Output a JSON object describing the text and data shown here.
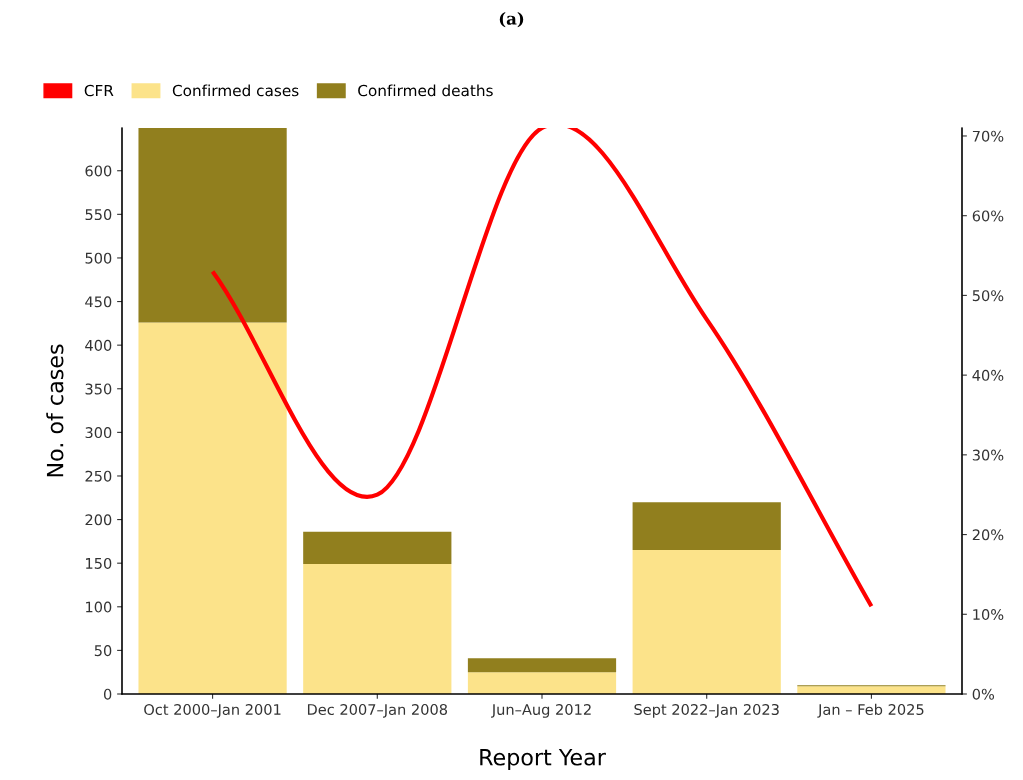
{
  "chart_data": {
    "type": "bar",
    "title": "(a)",
    "xlabel": "Report Year",
    "ylabel": "No. of cases",
    "categories": [
      "Oct 2000–Jan 2001",
      "Dec 2007–Jan 2008",
      "Jun–Aug 2012",
      "Sept 2022–Jan 2023",
      "Jan – Feb 2025"
    ],
    "stacked": true,
    "series": [
      {
        "name": "CFR",
        "type": "line",
        "axis": "y2",
        "color": "#ff0000",
        "values": [
          53,
          25,
          71,
          47,
          11
        ]
      },
      {
        "name": "Confirmed cases",
        "color": "#fce38a",
        "values": [
          426,
          149,
          25,
          165,
          9
        ]
      },
      {
        "name": "Confirmed deaths",
        "color": "#917f1e",
        "values": [
          223,
          37,
          16,
          55,
          1
        ]
      }
    ],
    "ylim": [
      0,
      649
    ],
    "yticks": [
      0,
      50,
      100,
      150,
      200,
      250,
      300,
      350,
      400,
      450,
      500,
      550,
      600
    ],
    "y2lim": [
      0,
      71
    ],
    "y2ticks": [
      {
        "value": 0,
        "label": "0%"
      },
      {
        "value": 10,
        "label": "10%"
      },
      {
        "value": 20,
        "label": "20%"
      },
      {
        "value": 30,
        "label": "30%"
      },
      {
        "value": 40,
        "label": "40%"
      },
      {
        "value": 50,
        "label": "50%"
      },
      {
        "value": 60,
        "label": "60%"
      },
      {
        "value": 70,
        "label": "70%"
      }
    ],
    "legend": "top left",
    "grid": false,
    "marker": "none",
    "line_style": "solid"
  }
}
